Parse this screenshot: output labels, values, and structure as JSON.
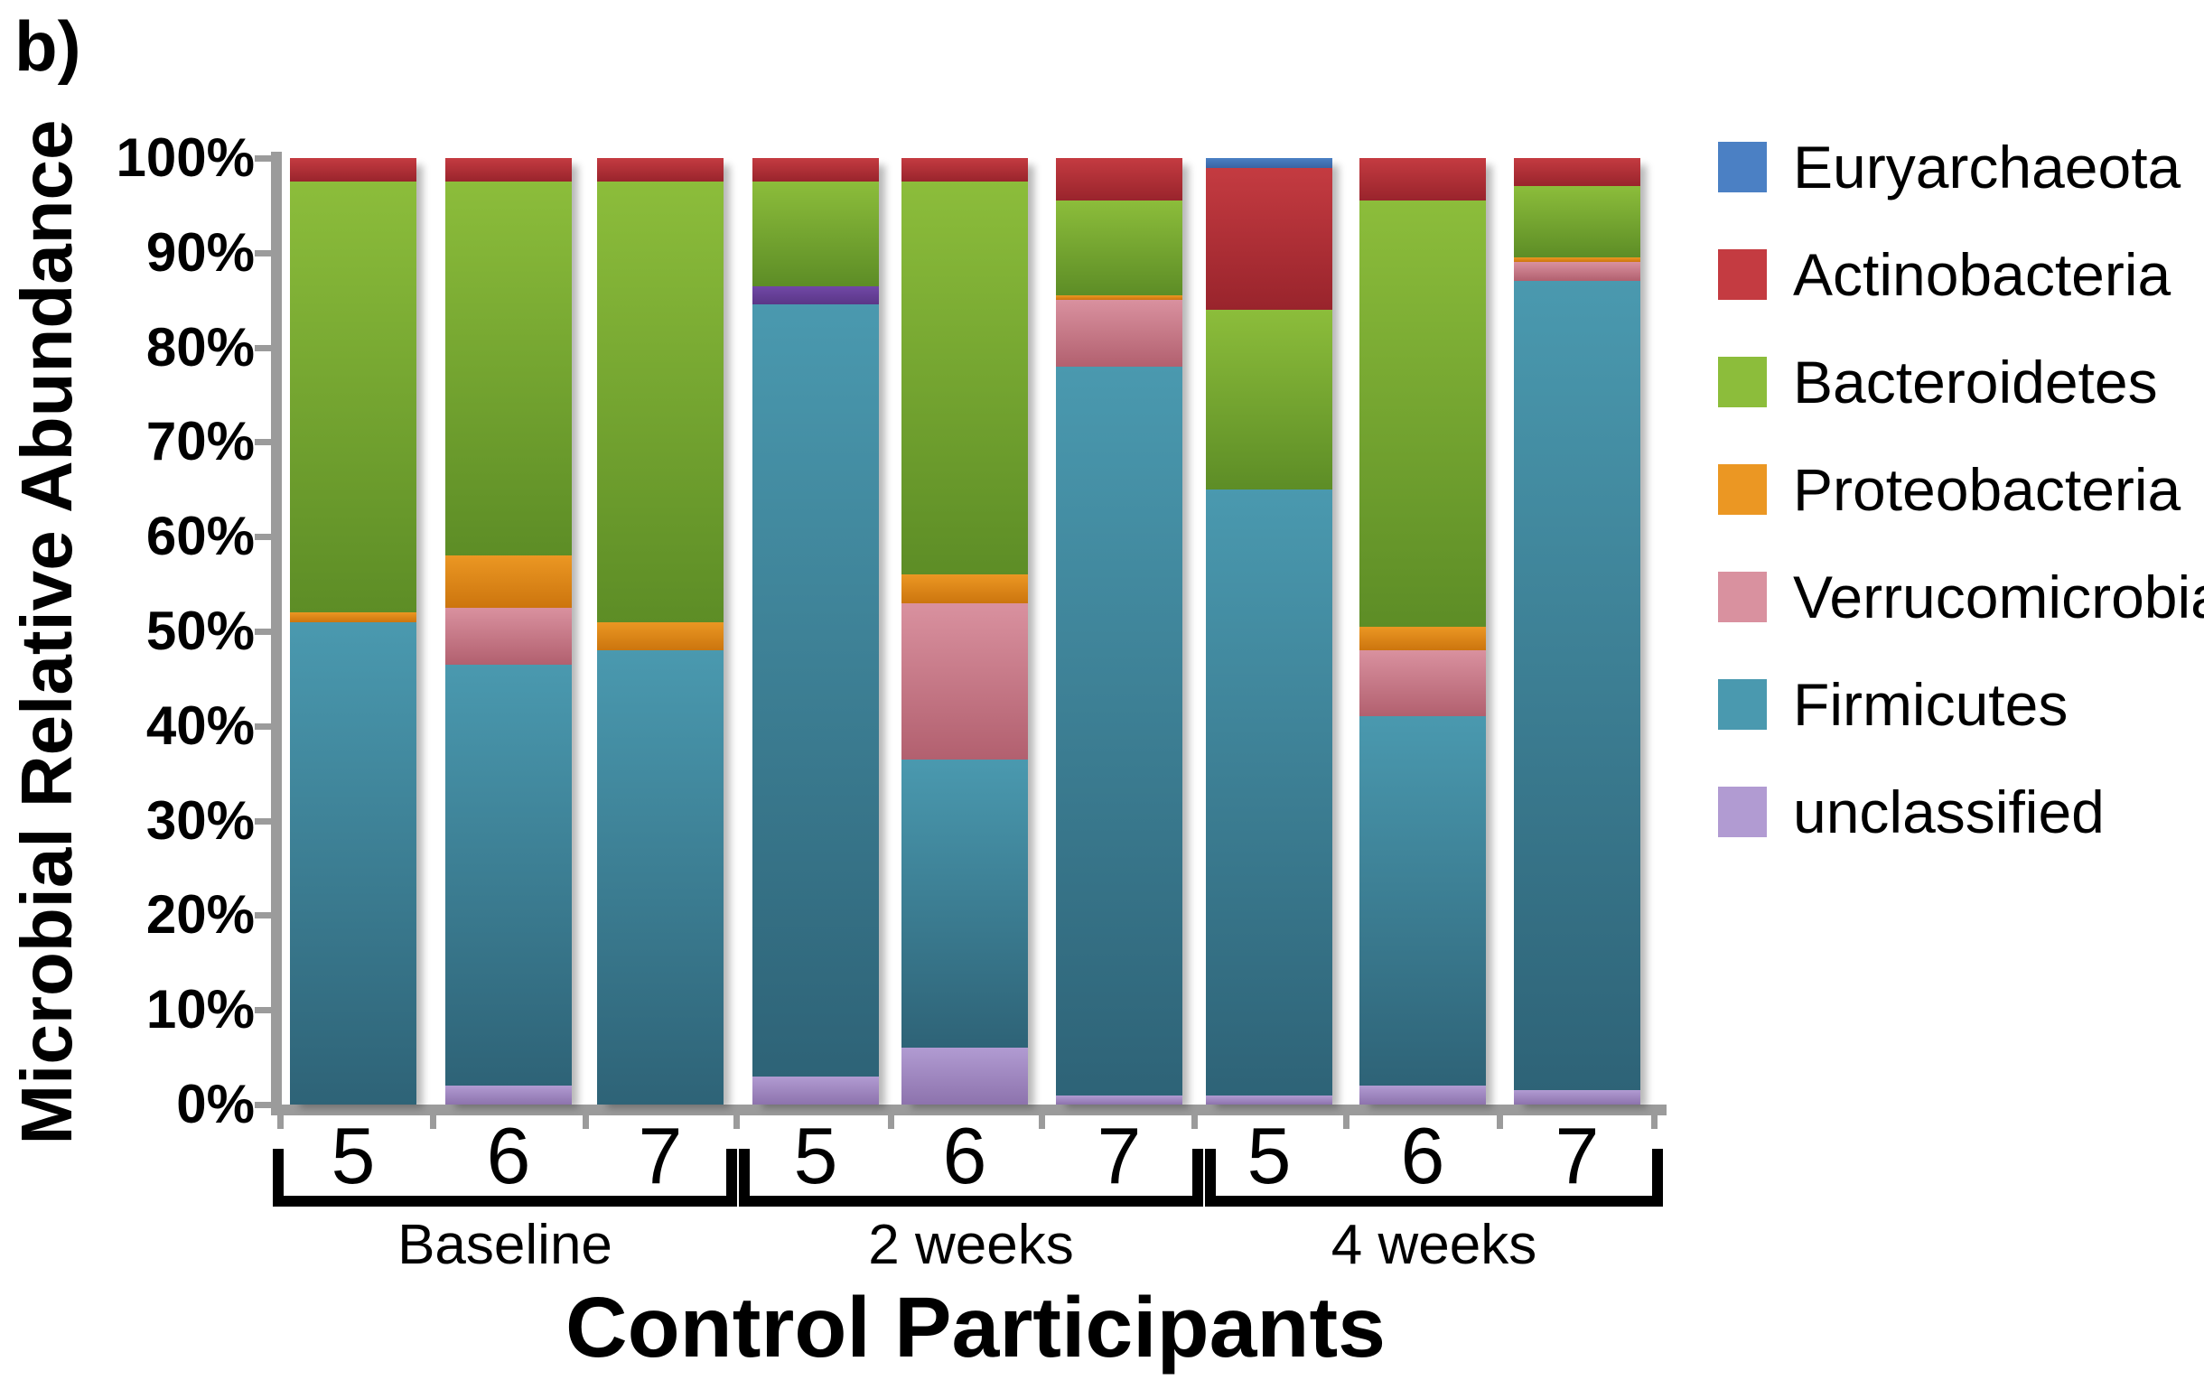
{
  "figure_label": "b)",
  "y_axis": {
    "title": "Microbial Relative Abundance",
    "tick_labels": [
      "0%",
      "10%",
      "20%",
      "30%",
      "40%",
      "50%",
      "60%",
      "70%",
      "80%",
      "90%",
      "100%"
    ],
    "min": 0,
    "max": 100
  },
  "x_axis": {
    "title": "Control Participants",
    "groups": [
      {
        "label": "Baseline",
        "participants": [
          "5",
          "6",
          "7"
        ]
      },
      {
        "label": "2 weeks",
        "participants": [
          "5",
          "6",
          "7"
        ]
      },
      {
        "label": "4 weeks",
        "participants": [
          "5",
          "6",
          "7"
        ]
      }
    ]
  },
  "legend": [
    {
      "label": "Euryarchaeota",
      "color_key": "euryarchaeota"
    },
    {
      "label": "Actinobacteria",
      "color_key": "actinobacteria"
    },
    {
      "label": "Bacteroidetes",
      "color_key": "bacteroidetes"
    },
    {
      "label": "Proteobacteria",
      "color_key": "proteobacteria"
    },
    {
      "label": "Verrucomicrobia",
      "color_key": "verrucomicrobia"
    },
    {
      "label": "Firmicutes",
      "color_key": "firmicutes"
    },
    {
      "label": "unclassified",
      "color_key": "unclassified"
    }
  ],
  "palette": {
    "euryarchaeota": {
      "top": "#4b80c4",
      "bottom": "#3a64a4"
    },
    "actinobacteria": {
      "top": "#c43b41",
      "bottom": "#99242c"
    },
    "bacteroidetes": {
      "top": "#8cbd3b",
      "bottom": "#5d8d26"
    },
    "proteobacteria": {
      "top": "#eb9723",
      "bottom": "#cc750e"
    },
    "verrucomicrobia": {
      "top": "#d9919f",
      "bottom": "#b2606f"
    },
    "firmicutes": {
      "top": "#4a99af",
      "bottom": "#2e6377"
    },
    "unclassified": {
      "top": "#b19bd2",
      "bottom": "#8d73ad"
    },
    "unclassified_dark": {
      "top": "#7148a6",
      "bottom": "#5a3687"
    },
    "axis": "#9b9b9b",
    "text": "#000000"
  },
  "chart_data": {
    "type": "bar",
    "stacked": true,
    "unit": "percent of total",
    "title": "",
    "xlabel": "Control Participants",
    "ylabel": "Microbial Relative Abundance",
    "ylim": [
      0,
      100
    ],
    "grid": false,
    "legend_position": "right",
    "categories": [
      "Baseline-5",
      "Baseline-6",
      "Baseline-7",
      "2 weeks-5",
      "2 weeks-6",
      "2 weeks-7",
      "4 weeks-5",
      "4 weeks-6",
      "4 weeks-7"
    ],
    "series": [
      {
        "name": "Euryarchaeota",
        "values": [
          0,
          0,
          0,
          0,
          0,
          0,
          1,
          0,
          0
        ]
      },
      {
        "name": "Actinobacteria",
        "values": [
          2.5,
          2.5,
          2.5,
          2.5,
          2.5,
          4.5,
          15,
          4.5,
          3
        ]
      },
      {
        "name": "Bacteroidetes",
        "values": [
          45.5,
          39.5,
          46.5,
          11,
          41.5,
          10,
          19,
          45,
          7.5
        ]
      },
      {
        "name": "Proteobacteria",
        "values": [
          1,
          5.5,
          3,
          0,
          3,
          0.5,
          0,
          2.5,
          0.5
        ]
      },
      {
        "name": "Verrucomicrobia",
        "values": [
          0,
          6,
          0,
          0,
          16.5,
          7,
          0,
          7,
          2
        ]
      },
      {
        "name": "Firmicutes",
        "values": [
          51,
          44.5,
          48,
          81.5,
          30.5,
          77,
          64,
          39,
          85.5
        ]
      },
      {
        "name": "unclassified",
        "values": [
          0,
          2,
          0,
          5,
          6,
          1,
          1,
          2,
          1.5
        ]
      }
    ],
    "bars": [
      {
        "group": "Baseline",
        "participant": "5",
        "segments": [
          {
            "series": "Firmicutes",
            "value": 51
          },
          {
            "series": "Proteobacteria",
            "value": 1
          },
          {
            "series": "Bacteroidetes",
            "value": 45.5
          },
          {
            "series": "Actinobacteria",
            "value": 2.5
          }
        ]
      },
      {
        "group": "Baseline",
        "participant": "6",
        "segments": [
          {
            "series": "unclassified",
            "value": 2
          },
          {
            "series": "Firmicutes",
            "value": 44.5
          },
          {
            "series": "Verrucomicrobia",
            "value": 6
          },
          {
            "series": "Proteobacteria",
            "value": 5.5
          },
          {
            "series": "Bacteroidetes",
            "value": 39.5
          },
          {
            "series": "Actinobacteria",
            "value": 2.5
          }
        ]
      },
      {
        "group": "Baseline",
        "participant": "7",
        "segments": [
          {
            "series": "Firmicutes",
            "value": 48
          },
          {
            "series": "Proteobacteria",
            "value": 3
          },
          {
            "series": "Bacteroidetes",
            "value": 46.5
          },
          {
            "series": "Actinobacteria",
            "value": 2.5
          }
        ]
      },
      {
        "group": "2 weeks",
        "participant": "5",
        "segments": [
          {
            "series": "unclassified",
            "value": 3
          },
          {
            "series": "Firmicutes",
            "value": 81.5
          },
          {
            "series": "unclassified",
            "color": "unclassified_dark",
            "value": 2
          },
          {
            "series": "Bacteroidetes",
            "value": 11
          },
          {
            "series": "Actinobacteria",
            "value": 2.5
          }
        ]
      },
      {
        "group": "2 weeks",
        "participant": "6",
        "segments": [
          {
            "series": "unclassified",
            "value": 6
          },
          {
            "series": "Firmicutes",
            "value": 30.5
          },
          {
            "series": "Verrucomicrobia",
            "value": 16.5
          },
          {
            "series": "Proteobacteria",
            "value": 3
          },
          {
            "series": "Bacteroidetes",
            "value": 41.5
          },
          {
            "series": "Actinobacteria",
            "value": 2.5
          }
        ]
      },
      {
        "group": "2 weeks",
        "participant": "7",
        "segments": [
          {
            "series": "unclassified",
            "value": 1
          },
          {
            "series": "Firmicutes",
            "value": 77
          },
          {
            "series": "Verrucomicrobia",
            "value": 7
          },
          {
            "series": "Proteobacteria",
            "value": 0.5
          },
          {
            "series": "Bacteroidetes",
            "value": 10
          },
          {
            "series": "Actinobacteria",
            "value": 4.5
          }
        ]
      },
      {
        "group": "4 weeks",
        "participant": "5",
        "segments": [
          {
            "series": "unclassified",
            "value": 1
          },
          {
            "series": "Firmicutes",
            "value": 64
          },
          {
            "series": "Bacteroidetes",
            "value": 19
          },
          {
            "series": "Actinobacteria",
            "value": 15
          },
          {
            "series": "Euryarchaeota",
            "value": 1
          }
        ]
      },
      {
        "group": "4 weeks",
        "participant": "6",
        "segments": [
          {
            "series": "unclassified",
            "value": 2
          },
          {
            "series": "Firmicutes",
            "value": 39
          },
          {
            "series": "Verrucomicrobia",
            "value": 7
          },
          {
            "series": "Proteobacteria",
            "value": 2.5
          },
          {
            "series": "Bacteroidetes",
            "value": 45
          },
          {
            "series": "Actinobacteria",
            "value": 4.5
          }
        ]
      },
      {
        "group": "4 weeks",
        "participant": "7",
        "segments": [
          {
            "series": "unclassified",
            "value": 1.5
          },
          {
            "series": "Firmicutes",
            "value": 85.5
          },
          {
            "series": "Verrucomicrobia",
            "value": 2
          },
          {
            "series": "Proteobacteria",
            "value": 0.5
          },
          {
            "series": "Bacteroidetes",
            "value": 7.5
          },
          {
            "series": "Actinobacteria",
            "value": 3
          }
        ]
      }
    ]
  }
}
